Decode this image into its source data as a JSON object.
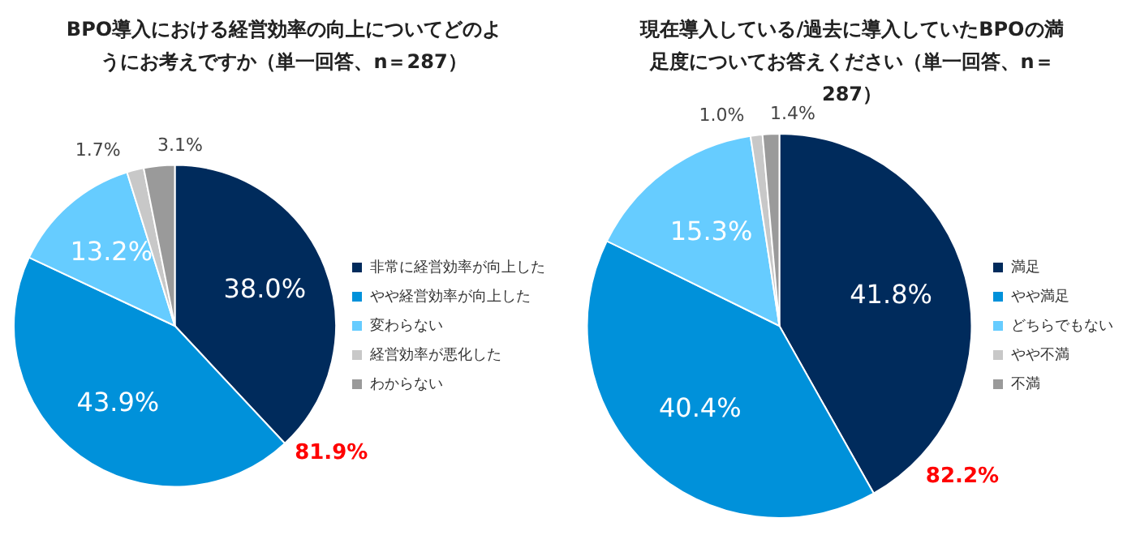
{
  "chart_data": [
    {
      "type": "pie",
      "title": "BPO導入における経営効率の向上についてどのようにお考えですか（単一回答、n＝287）",
      "categories": [
        "非常に経営効率が向上した",
        "やや経営効率が向上した",
        "変わらない",
        "経営効率が悪化した",
        "わからない"
      ],
      "values": [
        38.0,
        43.9,
        13.2,
        1.7,
        3.1
      ],
      "value_labels": [
        "38.0%",
        "43.9%",
        "13.2%",
        "1.7%",
        "3.1%"
      ],
      "colors": [
        "#002b5c",
        "#0091da",
        "#66ccff",
        "#c8c8c8",
        "#9a9a9a"
      ],
      "legend": "right",
      "annotations": [
        "81.9%"
      ]
    },
    {
      "type": "pie",
      "title": "現在導入している/過去に導入していたBPOの満足度についてお答えください（単一回答、n＝287）",
      "categories": [
        "満足",
        "やや満足",
        "どちらでもない",
        "やや不満",
        "不満"
      ],
      "values": [
        41.8,
        40.4,
        15.3,
        1.0,
        1.4
      ],
      "value_labels": [
        "41.8%",
        "40.4%",
        "15.3%",
        "1.0%",
        "1.4%"
      ],
      "colors": [
        "#002b5c",
        "#0091da",
        "#66ccff",
        "#c8c8c8",
        "#9a9a9a"
      ],
      "legend": "right",
      "annotations": [
        "82.2%"
      ]
    }
  ]
}
